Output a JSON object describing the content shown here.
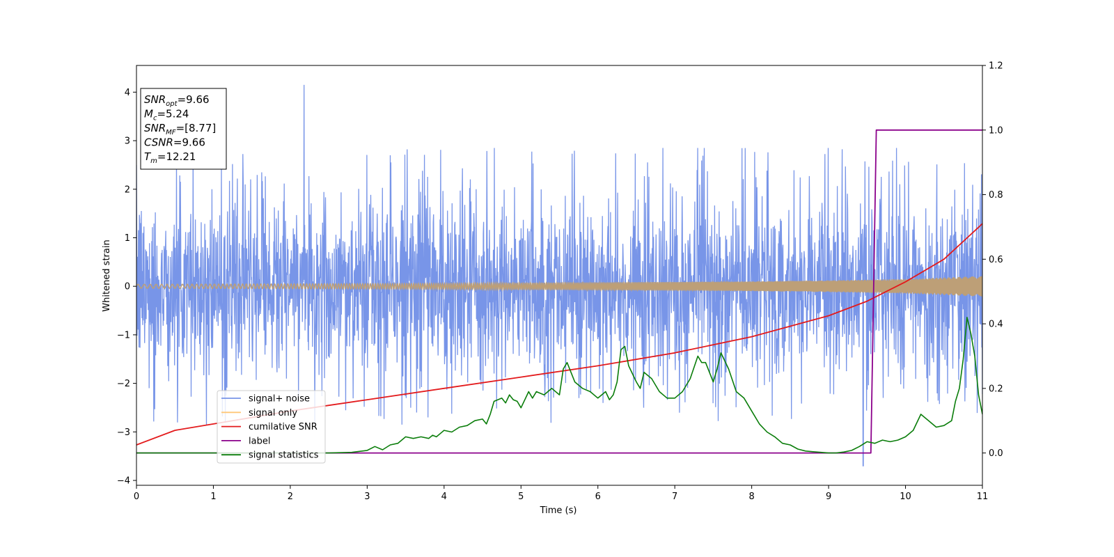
{
  "chart_data": {
    "type": "line",
    "title": "",
    "xlabel": "Time (s)",
    "ylabel": "Whitened strain",
    "xlim": [
      0,
      11
    ],
    "ylim": [
      -4.1,
      4.55
    ],
    "y2lim": [
      -0.1,
      1.2
    ],
    "xticks": [
      0,
      1,
      2,
      3,
      4,
      5,
      6,
      7,
      8,
      9,
      10,
      11
    ],
    "yticks": [
      -4,
      -3,
      -2,
      -1,
      0,
      1,
      2,
      3,
      4
    ],
    "y2ticks": [
      0.0,
      0.2,
      0.4,
      0.6,
      0.8,
      1.0,
      1.2
    ],
    "grid": false,
    "legend_position": "lower-left",
    "colors": {
      "signal_noise": "#7895e8",
      "signal_only": "#ffc878",
      "signal_only_overlap": "#bd9f77",
      "cumulative_snr": "#e31a1c",
      "label": "#8b008b",
      "signal_statistics": "#0a7d0a"
    },
    "series": [
      {
        "name": "signal+ noise",
        "axis": "left",
        "style": "dense noise, roughly gaussian sigma 0.85",
        "envelope": {
          "upper": 1.6,
          "lower": -1.6,
          "max_peak": 4.15,
          "max_peak_x": 2.18,
          "min_peak": -3.7,
          "min_peak_x": 9.45
        }
      },
      {
        "name": "signal only",
        "axis": "left",
        "style": "chirp",
        "amplitude_envelope": {
          "x": [
            0,
            2,
            4,
            6,
            8,
            9,
            10,
            11
          ],
          "amp": [
            0.04,
            0.05,
            0.06,
            0.08,
            0.1,
            0.12,
            0.15,
            0.21
          ]
        }
      },
      {
        "name": "cumilative SNR",
        "axis": "right",
        "x": [
          0,
          0.5,
          1,
          2,
          3,
          4,
          5,
          6,
          7,
          8,
          9,
          9.5,
          10,
          10.5,
          11
        ],
        "y": [
          0.025,
          0.07,
          0.09,
          0.13,
          0.165,
          0.2,
          0.235,
          0.27,
          0.31,
          0.36,
          0.425,
          0.47,
          0.53,
          0.6,
          0.71
        ]
      },
      {
        "name": "label",
        "axis": "right",
        "x": [
          0,
          9.55,
          9.62,
          11
        ],
        "y": [
          0.0,
          0.0,
          1.0,
          1.0
        ]
      },
      {
        "name": "signal statistics",
        "axis": "right",
        "x": [
          0,
          1,
          2,
          2.5,
          2.8,
          3.0,
          3.1,
          3.2,
          3.3,
          3.4,
          3.5,
          3.6,
          3.7,
          3.8,
          3.85,
          3.9,
          4.0,
          4.1,
          4.2,
          4.3,
          4.4,
          4.5,
          4.55,
          4.6,
          4.65,
          4.7,
          4.75,
          4.8,
          4.85,
          4.9,
          4.95,
          5.0,
          5.1,
          5.15,
          5.2,
          5.3,
          5.4,
          5.5,
          5.55,
          5.6,
          5.7,
          5.8,
          5.9,
          6.0,
          6.1,
          6.15,
          6.2,
          6.25,
          6.3,
          6.35,
          6.4,
          6.5,
          6.55,
          6.6,
          6.7,
          6.8,
          6.9,
          7.0,
          7.1,
          7.2,
          7.3,
          7.35,
          7.4,
          7.5,
          7.55,
          7.6,
          7.7,
          7.8,
          7.9,
          8.0,
          8.1,
          8.2,
          8.3,
          8.4,
          8.5,
          8.6,
          8.7,
          8.8,
          9.0,
          9.1,
          9.2,
          9.3,
          9.4,
          9.5,
          9.6,
          9.7,
          9.8,
          9.9,
          10.0,
          10.1,
          10.2,
          10.3,
          10.4,
          10.5,
          10.6,
          10.65,
          10.7,
          10.75,
          10.8,
          10.85,
          10.9,
          10.95,
          11.0
        ],
        "y": [
          0.0,
          0.0,
          0.0,
          0.0,
          0.002,
          0.008,
          0.02,
          0.01,
          0.025,
          0.03,
          0.05,
          0.045,
          0.05,
          0.045,
          0.055,
          0.05,
          0.07,
          0.065,
          0.08,
          0.085,
          0.1,
          0.105,
          0.09,
          0.12,
          0.16,
          0.165,
          0.17,
          0.155,
          0.18,
          0.165,
          0.16,
          0.14,
          0.19,
          0.17,
          0.19,
          0.18,
          0.2,
          0.18,
          0.26,
          0.28,
          0.22,
          0.2,
          0.19,
          0.17,
          0.19,
          0.165,
          0.18,
          0.22,
          0.32,
          0.33,
          0.27,
          0.22,
          0.2,
          0.25,
          0.23,
          0.19,
          0.17,
          0.17,
          0.19,
          0.23,
          0.3,
          0.28,
          0.28,
          0.22,
          0.26,
          0.31,
          0.26,
          0.19,
          0.17,
          0.13,
          0.09,
          0.065,
          0.05,
          0.03,
          0.025,
          0.012,
          0.006,
          0.004,
          0.0,
          0.0,
          0.003,
          0.008,
          0.02,
          0.035,
          0.03,
          0.04,
          0.035,
          0.04,
          0.05,
          0.07,
          0.12,
          0.1,
          0.08,
          0.085,
          0.1,
          0.16,
          0.2,
          0.29,
          0.42,
          0.37,
          0.3,
          0.18,
          0.12
        ]
      }
    ],
    "annotation": [
      {
        "base": "SNR",
        "sub": "opt",
        "value": "=9.66"
      },
      {
        "base": "M",
        "sub": "c",
        "value": "=5.24"
      },
      {
        "base": "SNR",
        "sub": "MF",
        "value": "=[8.77]"
      },
      {
        "base": "CSNR",
        "sub": "",
        "value": "=9.66"
      },
      {
        "base": "T",
        "sub": "m",
        "value": "=12.21"
      }
    ],
    "legend": [
      "signal+ noise",
      "signal only",
      "cumilative SNR",
      "label",
      "signal statistics"
    ]
  }
}
